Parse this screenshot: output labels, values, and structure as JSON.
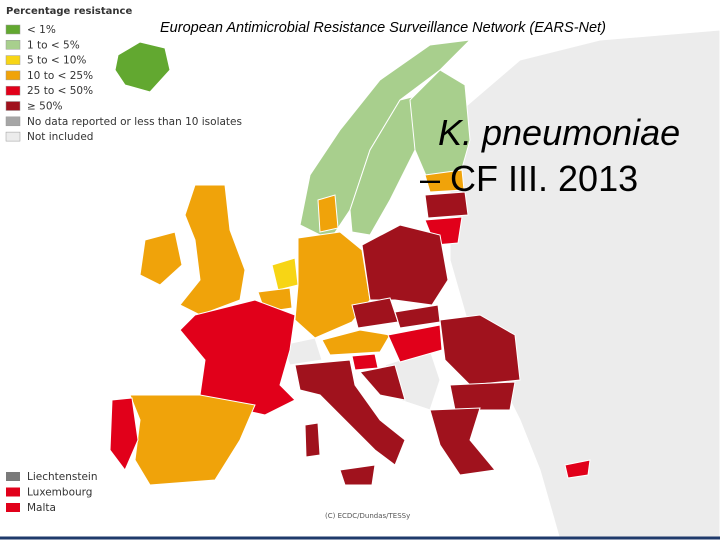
{
  "legend": {
    "title": "Percentage resistance",
    "items": [
      {
        "label": "< 1%",
        "color": "#62a830"
      },
      {
        "label": "1 to < 5%",
        "color": "#a8cf8d"
      },
      {
        "label": "5 to < 10%",
        "color": "#f7d515"
      },
      {
        "label": "10 to < 25%",
        "color": "#f0a30a"
      },
      {
        "label": "25 to < 50%",
        "color": "#e1001a"
      },
      {
        "label": "≥ 50%",
        "color": "#a0121d"
      },
      {
        "label": "No data reported or less than 10 isolates",
        "color": "#a6a6a6"
      },
      {
        "label": "Not included",
        "color": "#ececec"
      }
    ]
  },
  "small_states": [
    {
      "label": "Liechtenstein",
      "color": "#7a7a7a"
    },
    {
      "label": "Luxembourg",
      "color": "#e1001a"
    },
    {
      "label": "Malta",
      "color": "#e1001a"
    }
  ],
  "header": "European Antimicrobial Resistance Surveillance Network (EARS-Net)",
  "title": {
    "line1": "K. pneumoniae",
    "line2": "– CF III. 2013"
  },
  "credit": "(C) ECDC/Dundas/TESSy"
}
